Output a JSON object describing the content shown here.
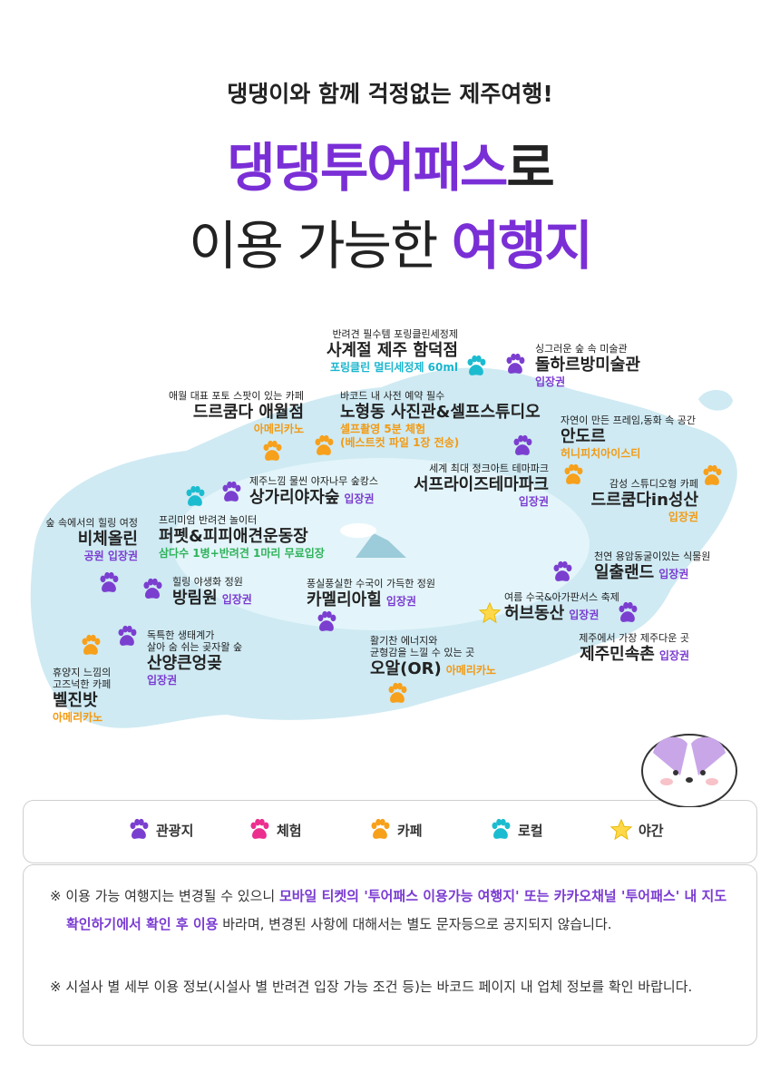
{
  "header": {
    "subtitle": "댕댕이와 함께 걱정없는 제주여행!",
    "title_highlight": "댕댕투어패스",
    "title_rest": "로",
    "line2_plain": "이용 가능한",
    "line2_highlight": "여행지"
  },
  "places": [
    {
      "desc": "반려견 필수템 포링클린세정제",
      "name": "사계절 제주 함덕점",
      "tag": "포링클린 멀티세정제 60ml",
      "tag_color": "#19b6cf",
      "color": "#1cbcd0"
    },
    {
      "desc": "싱그러운 숲 속 미술관",
      "name": "돌하르방미술관",
      "tag": "입장권",
      "tag_color": "#7a3bd1",
      "color": "#7b3fd0"
    },
    {
      "desc": "애월 대표 포토 스팟이 있는 카페",
      "name": "드르쿰다 애월점",
      "tag": "아메리카노",
      "tag_color": "#f39a12",
      "color": "#f7a01b"
    },
    {
      "desc": "바코드 내 사전 예약 필수",
      "name": "노형동 사진관&셀프스튜디오",
      "tag": "셀프촬영 5분 체험\n(베스트컷 파일 1장 전송)",
      "tag_color": "#f39a12",
      "color": "#f7a01b"
    },
    {
      "desc": "자연이 만든 프레임,동화 속 공간",
      "name": "안도르",
      "tag": "허니피치아이스티",
      "tag_color": "#f39a12",
      "color": "#f7a01b"
    },
    {
      "desc": "세계 최대 정크아트 테마파크",
      "name": "서프라이즈테마파크",
      "tag": "입장권",
      "tag_color": "#7a3bd1",
      "color": "#7b3fd0"
    },
    {
      "desc": "제주느낌 물씬 야자나무 숲캉스",
      "name": "상가리야자숲",
      "tag": "입장권",
      "tag_color": "#7a3bd1",
      "color": "#7b3fd0"
    },
    {
      "desc": "감성 스튜디오형 카페",
      "name": "드르쿰다in성산",
      "tag": "입장권",
      "tag_color": "#f39a12",
      "color": "#f7a01b"
    },
    {
      "desc": "숲 속에서의 힐링 여정",
      "name": "비체올린",
      "tag": "공원 입장권",
      "tag_color": "#7a3bd1",
      "color": "#7b3fd0"
    },
    {
      "desc": "프리미엄 반려견 놀이터",
      "name": "퍼펫&피피애견운동장",
      "tag": "삼다수 1병+반려견 1마리 무료입장",
      "tag_color": "#2fb35a",
      "color": "#7b3fd0"
    },
    {
      "desc": "힐링 야생화 정원",
      "name": "방림원",
      "tag": "입장권",
      "tag_color": "#7a3bd1",
      "color": "#7b3fd0"
    },
    {
      "desc": "풍실풍실한 수국이 가득한 정원",
      "name": "카멜리아힐",
      "tag": "입장권",
      "tag_color": "#7a3bd1",
      "color": "#7b3fd0"
    },
    {
      "desc": "천연 용암동굴이있는 식물원",
      "name": "일출랜드",
      "tag": "입장권",
      "tag_color": "#7a3bd1",
      "color": "#7b3fd0"
    },
    {
      "desc": "여름 수국&아가판서스 축제",
      "name": "허브동산",
      "tag": "입장권",
      "tag_color": "#7a3bd1",
      "color": "#ffd84a"
    },
    {
      "desc": "독특한 생태계가\n살아 숨 쉬는 곶자왈 숲",
      "name": "산양큰엉곶",
      "tag": "입장권",
      "tag_color": "#7a3bd1",
      "color": "#7b3fd0"
    },
    {
      "desc": "활기찬 에너지와\n균형감을 느낄 수 있는 곳",
      "name": "오알(OR)",
      "tag": "아메리카노",
      "tag_color": "#f39a12",
      "color": "#f7a01b"
    },
    {
      "desc": "제주에서 가장 제주다운 곳",
      "name": "제주민속촌",
      "tag": "입장권",
      "tag_color": "#7a3bd1",
      "color": "#7b3fd0"
    },
    {
      "desc": "휴양지 느낌의\n고즈넉한 카페",
      "name": "벨진밧",
      "tag": "아메리카노",
      "tag_color": "#f39a12",
      "color": "#f7a01b"
    }
  ],
  "legend": [
    {
      "name": "관광지",
      "color": "#7b3fd0"
    },
    {
      "name": "체험",
      "color": "#ec2f8f"
    },
    {
      "name": "카페",
      "color": "#f7a01b"
    },
    {
      "name": "로컬",
      "color": "#1cbcd0"
    },
    {
      "name": "야간",
      "color": "#ffd84a"
    }
  ],
  "notes": [
    {
      "before": "※ 이용 가능 여행지는 변경될 수 있으니 ",
      "highlight": "모바일 티켓의 '투어패스 이용가능 여행지' 또는 카카오채널 '투어패스' 내 지도 확인하기에서 확인 후 이용",
      "after": " 바라며, 변경된 사항에 대해서는 별도 문자등으로 공지되지 않습니다."
    },
    {
      "before": "※ 시설사 별 세부 이용 정보(시설사 별 반려견 입장 가능 조건 등)는 바코드 페이지 내 업체 정보를 확인 바랍니다."
    }
  ]
}
